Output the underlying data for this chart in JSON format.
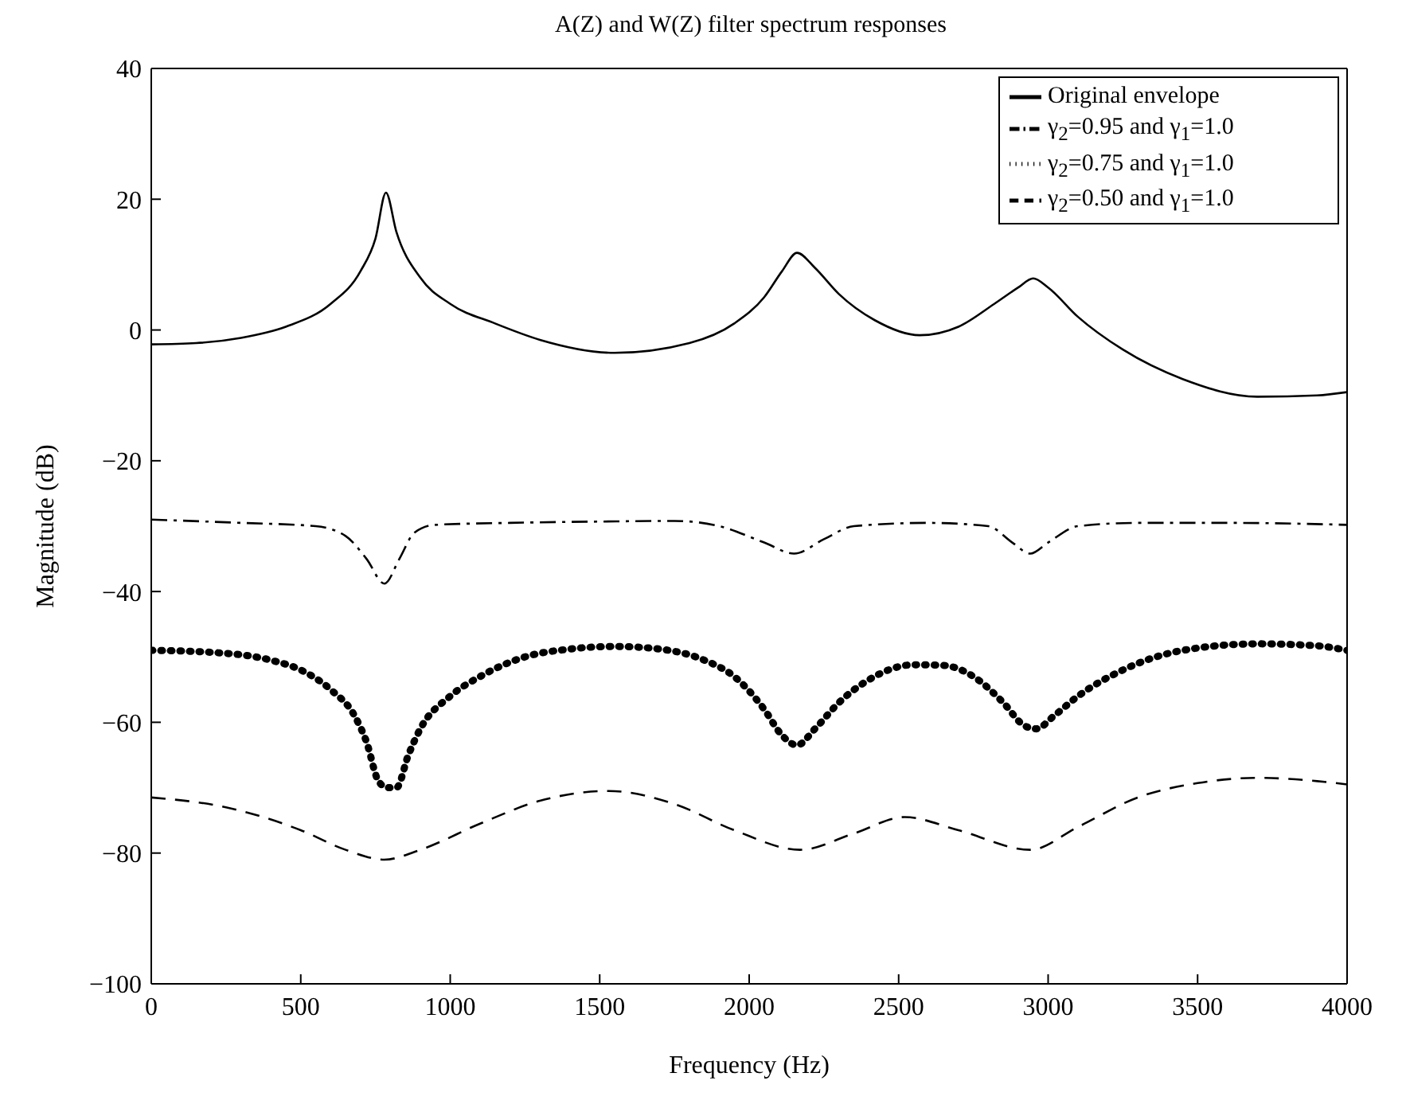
{
  "chart_data": {
    "type": "line",
    "title": "A(Z) and W(Z) filter spectrum responses",
    "xlabel": "Frequency (Hz)",
    "ylabel": "Magnitude  (dB)",
    "xlim": [
      0,
      4000
    ],
    "xticks": [
      0,
      500,
      1000,
      1500,
      2000,
      2500,
      3000,
      3500,
      4000
    ],
    "ylim": [
      -100,
      40
    ],
    "yticks": [
      -100,
      -80,
      -60,
      -40,
      -20,
      0,
      20,
      40
    ],
    "legend": "top right",
    "series": [
      {
        "name": "Original envelope",
        "color": "#000000",
        "line_style": "solid",
        "x": [
          0,
          150,
          300,
          450,
          600,
          700,
          750,
          785,
          820,
          900,
          1000,
          1150,
          1300,
          1550,
          1800,
          1950,
          2050,
          2110,
          2160,
          2220,
          2300,
          2420,
          2570,
          2700,
          2820,
          2900,
          2950,
          3000,
          3100,
          3250,
          3450,
          3700,
          3900,
          4000
        ],
        "values": [
          -2.2,
          -2,
          -1.2,
          0.5,
          4,
          9,
          14,
          21,
          15,
          8,
          4,
          1,
          -1.5,
          -3.5,
          -2,
          1,
          5,
          9,
          11.8,
          9.5,
          5.5,
          1.5,
          -0.8,
          0.5,
          4,
          6.5,
          7.9,
          6.5,
          2,
          -3,
          -7.5,
          -10.2,
          -10,
          -9.5
        ]
      },
      {
        "name": "γ$_{2}$=0.95 and γ$_{1}$=1.0",
        "color": "#000000",
        "line_style": "dashdot",
        "x": [
          0,
          300,
          550,
          650,
          720,
          780,
          830,
          880,
          950,
          1200,
          1500,
          1750,
          1900,
          2050,
          2150,
          2250,
          2350,
          2600,
          2800,
          2880,
          2940,
          3000,
          3100,
          3300,
          3600,
          4000
        ],
        "values": [
          -29,
          -29.5,
          -30,
          -31.5,
          -35,
          -38.8,
          -35,
          -31,
          -29.8,
          -29.5,
          -29.3,
          -29.2,
          -30,
          -32.5,
          -34.2,
          -32,
          -30,
          -29.5,
          -30,
          -32.5,
          -34.2,
          -32.5,
          -30,
          -29.5,
          -29.5,
          -29.8
        ]
      },
      {
        "name": "γ$_{2}$=0.75 and γ$_{1}$=1.0",
        "color": "#000000",
        "line_style": "dotted",
        "x": [
          0,
          200,
          400,
          500,
          600,
          680,
          720,
          760,
          790,
          820,
          860,
          900,
          1000,
          1100,
          1250,
          1400,
          1550,
          1700,
          1850,
          1950,
          2050,
          2110,
          2160,
          2220,
          2300,
          2400,
          2550,
          2650,
          2750,
          2850,
          2920,
          2960,
          3020,
          3100,
          3250,
          3450,
          3700,
          3900,
          4000
        ],
        "values": [
          -49,
          -49.3,
          -50.5,
          -52,
          -55,
          -59,
          -63,
          -69,
          -70,
          -70,
          -65,
          -61,
          -56,
          -53,
          -50,
          -48.8,
          -48.4,
          -48.8,
          -50.5,
          -53,
          -58,
          -62,
          -63.5,
          -61,
          -57,
          -53.5,
          -51.2,
          -51.3,
          -53,
          -57,
          -60.5,
          -61,
          -59,
          -56,
          -52,
          -49,
          -48,
          -48.3,
          -49
        ]
      },
      {
        "name": "γ$_{2}$=0.50 and γ$_{1}$=1.0",
        "color": "#000000",
        "line_style": "dashed",
        "x": [
          0,
          250,
          500,
          650,
          780,
          900,
          1100,
          1300,
          1530,
          1750,
          1950,
          2170,
          2350,
          2520,
          2700,
          2940,
          3100,
          3300,
          3500,
          3700,
          3900,
          4000
        ],
        "values": [
          -71.5,
          -73,
          -76.5,
          -79.5,
          -81,
          -79.5,
          -75.5,
          -72,
          -70.5,
          -72.5,
          -76.5,
          -79.5,
          -77,
          -74.5,
          -76.5,
          -79.5,
          -76,
          -71.5,
          -69.3,
          -68.5,
          -69,
          -69.5
        ]
      }
    ]
  }
}
